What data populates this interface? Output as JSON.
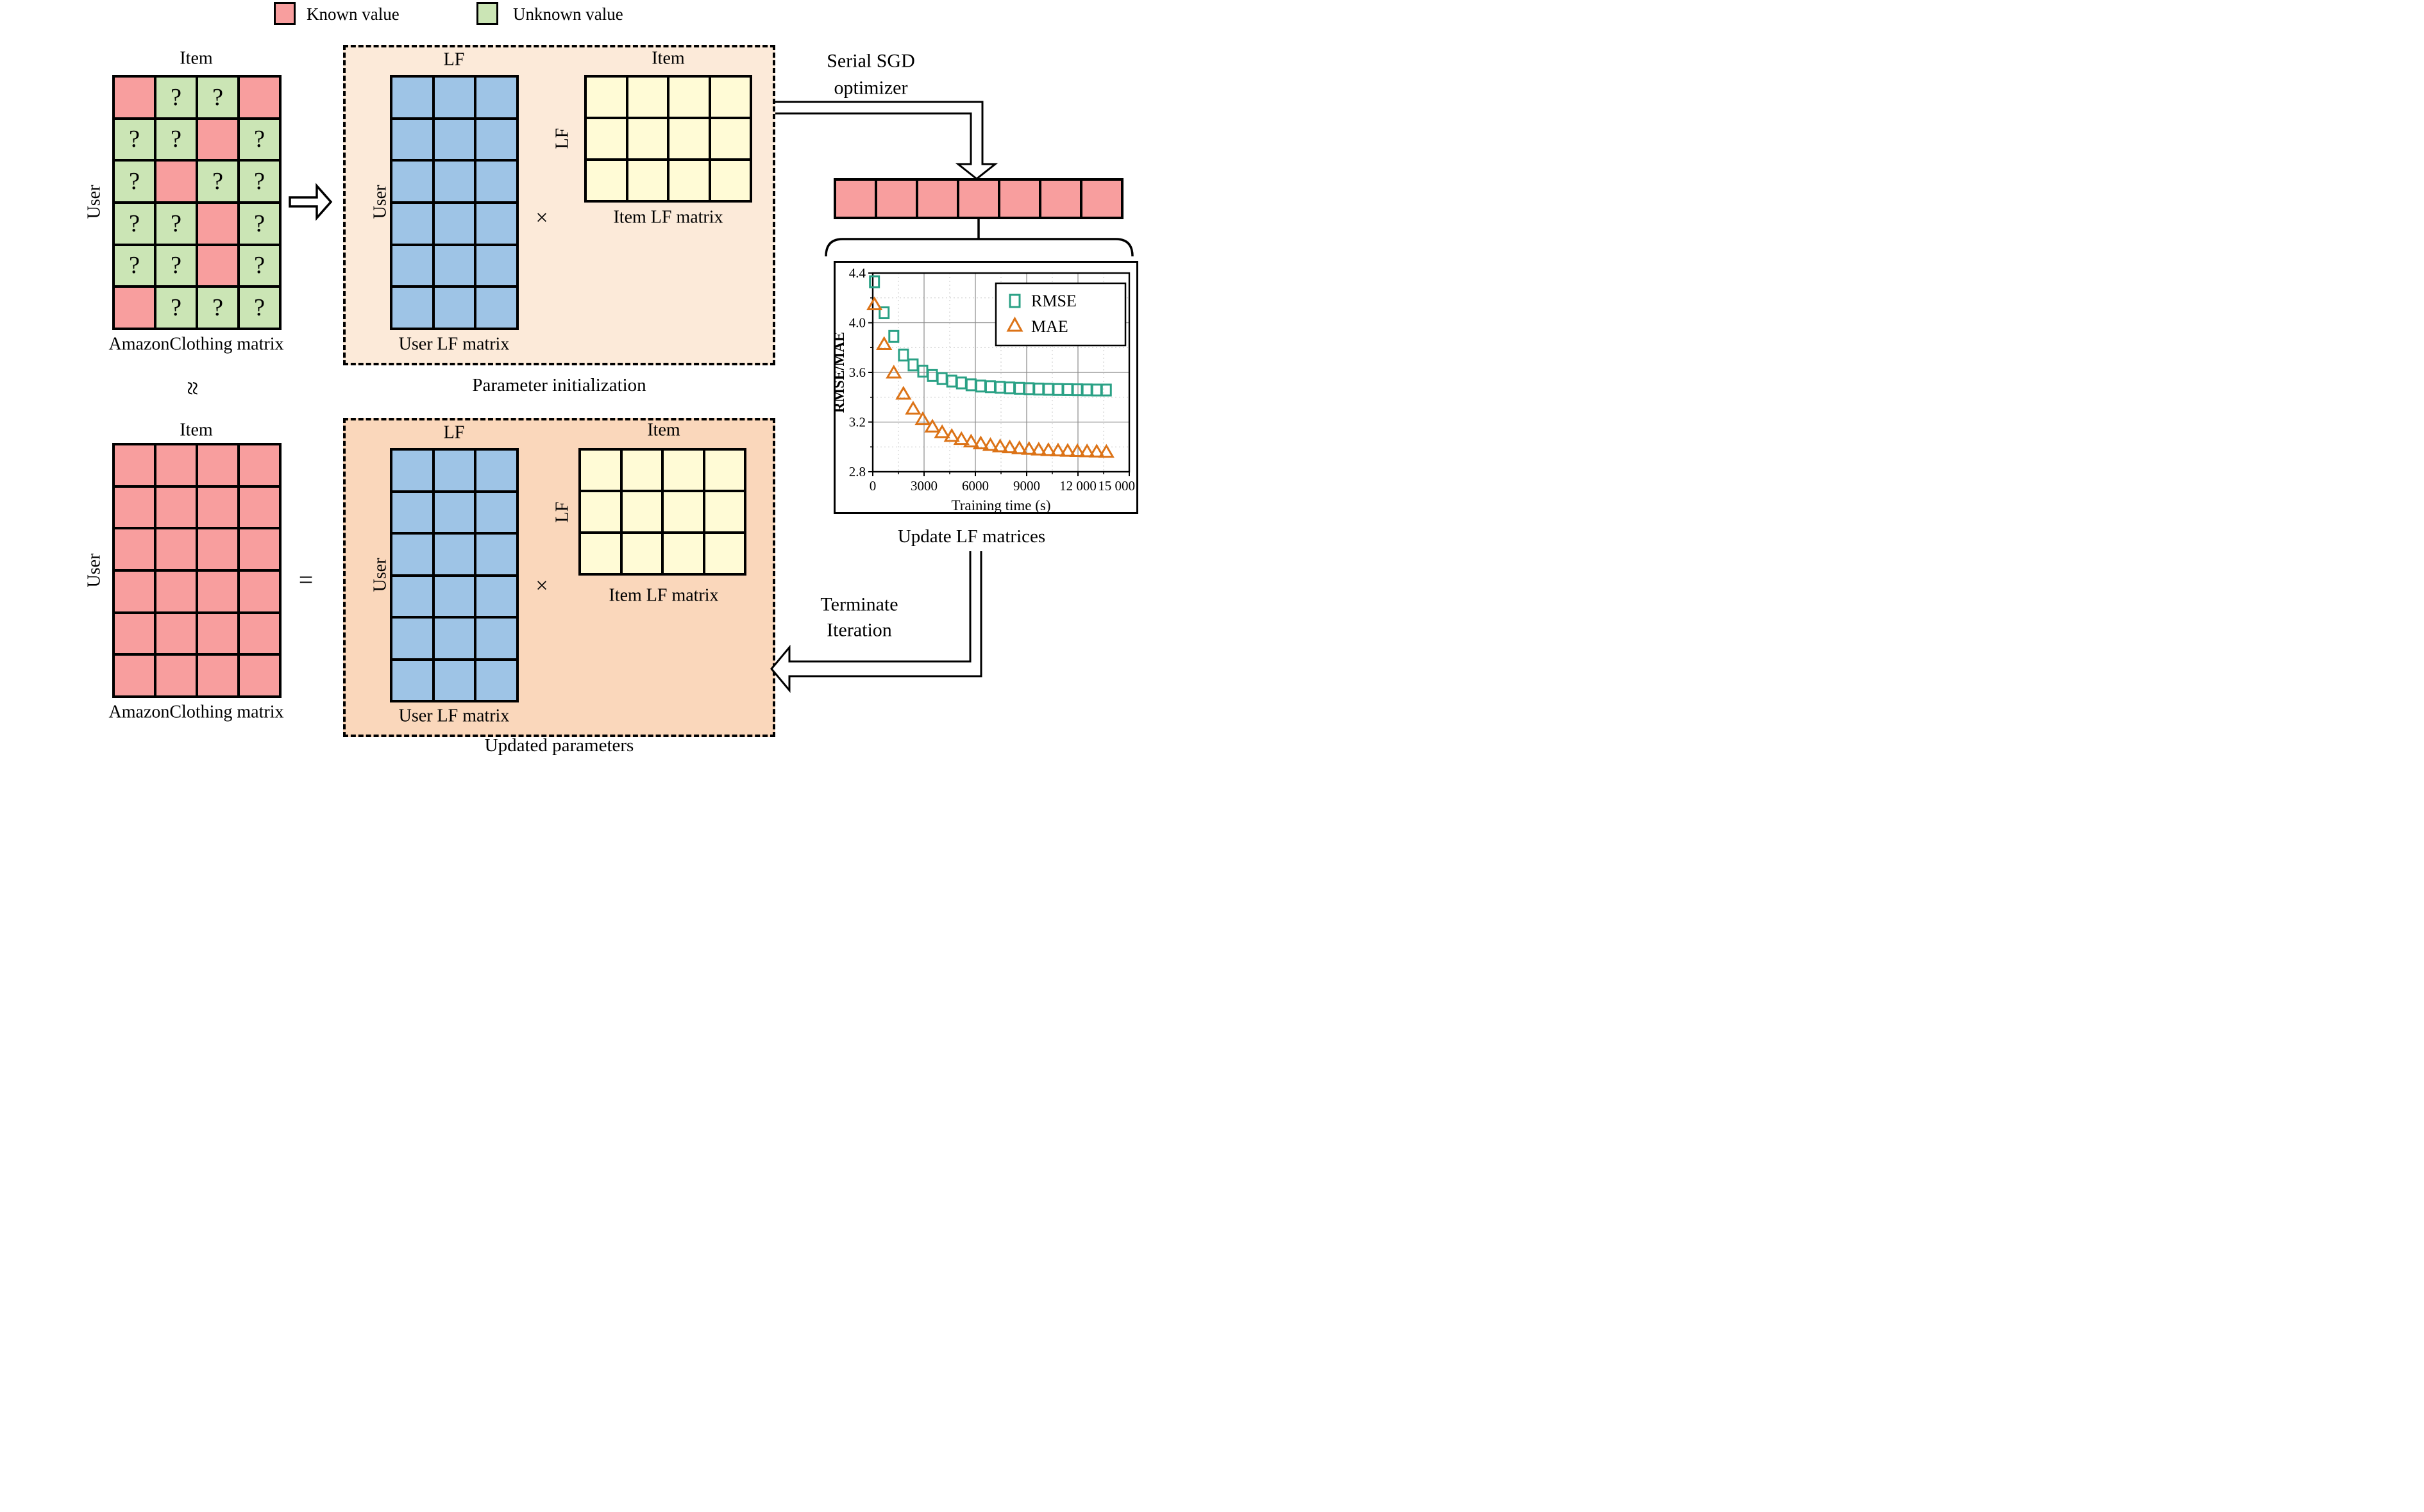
{
  "legend": {
    "known_label": "Known value",
    "unknown_label": "Unknown value"
  },
  "colors": {
    "known": "#f89e9e",
    "unknown": "#cbe5b5",
    "user_lf": "#9ec4e6",
    "item_lf": "#fffbd6",
    "init_box_bg": "#fcead9",
    "updated_box_bg": "#fad7bb",
    "rmse": "#2aa185",
    "mae": "#dc7317"
  },
  "approx_symbol": "≈",
  "equals_symbol": "=",
  "multiply_symbol": "×",
  "source_matrix": {
    "item_label": "Item",
    "user_label": "User",
    "caption": "AmazonClothing matrix",
    "rows": 6,
    "cols": 4,
    "known_fill": "known",
    "unknown_fill": "unknown",
    "mark": "?",
    "known_cells": [
      [
        0,
        0
      ],
      [
        0,
        3
      ],
      [
        1,
        2
      ],
      [
        2,
        1
      ],
      [
        3,
        2
      ],
      [
        4,
        2
      ],
      [
        5,
        0
      ]
    ]
  },
  "dense_matrix": {
    "item_label": "Item",
    "user_label": "User",
    "caption": "AmazonClothing matrix",
    "rows": 6,
    "cols": 4,
    "fill": "known"
  },
  "init_box": {
    "caption": "Parameter initialization",
    "user_matrix": {
      "top_label": "LF",
      "side_label": "User",
      "caption": "User LF matrix",
      "rows": 6,
      "cols": 3,
      "fill": "user_lf"
    },
    "item_matrix": {
      "top_label": "Item",
      "side_label": "LF",
      "caption": "Item LF matrix",
      "rows": 3,
      "cols": 4,
      "fill": "item_lf"
    }
  },
  "updated_box": {
    "caption": "Updated parameters",
    "user_matrix": {
      "top_label": "LF",
      "side_label": "User",
      "caption": "User LF matrix",
      "rows": 6,
      "cols": 3,
      "fill": "user_lf"
    },
    "item_matrix": {
      "top_label": "Item",
      "side_label": "LF",
      "caption": "Item LF matrix",
      "rows": 3,
      "cols": 4,
      "fill": "item_lf"
    }
  },
  "sgd": {
    "line1": "Serial SGD",
    "line2": "optimizer"
  },
  "vector": {
    "rows": 1,
    "cols": 7,
    "fill": "known"
  },
  "terminate": {
    "line1": "Terminate",
    "line2": "Iteration"
  },
  "chart_caption": "Update LF matrices",
  "chart_data": {
    "type": "scatter",
    "title": "",
    "xlabel": "Training time (s)",
    "ylabel": "RMSE/MAE",
    "xlim": [
      0,
      15000
    ],
    "ylim": [
      2.8,
      4.4
    ],
    "x_ticks": [
      0,
      3000,
      6000,
      9000,
      12000,
      15000
    ],
    "x_tick_labels": [
      "0",
      "3000",
      "6000",
      "9000",
      "12 000",
      "15 000"
    ],
    "x_minor_ticks": [
      1500,
      4500,
      7500,
      10500,
      13500
    ],
    "y_ticks": [
      2.8,
      3.2,
      3.6,
      4.0,
      4.4
    ],
    "y_tick_labels": [
      "2.8",
      "3.2",
      "3.6",
      "4.0",
      "4.4"
    ],
    "y_minor_ticks": [
      3.0,
      3.4,
      3.8,
      4.2
    ],
    "grid": "major-solid-minor-dotted",
    "legend_position": "top-right",
    "series": [
      {
        "name": "RMSE",
        "marker": "square",
        "color": "#2aa185",
        "x": [
          100,
          665,
          1230,
          1795,
          2360,
          2925,
          3490,
          4055,
          4620,
          5185,
          5750,
          6315,
          6880,
          7445,
          8010,
          8575,
          9140,
          9705,
          10270,
          10835,
          11400,
          11965,
          12530,
          13095,
          13660
        ],
        "y": [
          4.33,
          4.08,
          3.89,
          3.74,
          3.66,
          3.61,
          3.575,
          3.55,
          3.53,
          3.515,
          3.5,
          3.49,
          3.485,
          3.48,
          3.475,
          3.472,
          3.469,
          3.466,
          3.464,
          3.462,
          3.461,
          3.46,
          3.459,
          3.458,
          3.458
        ]
      },
      {
        "name": "MAE",
        "marker": "triangle",
        "color": "#dc7317",
        "x": [
          100,
          665,
          1230,
          1795,
          2360,
          2925,
          3490,
          4055,
          4620,
          5185,
          5750,
          6315,
          6880,
          7445,
          8010,
          8575,
          9140,
          9705,
          10270,
          10835,
          11400,
          11965,
          12530,
          13095,
          13660
        ],
        "y": [
          4.15,
          3.83,
          3.6,
          3.43,
          3.31,
          3.225,
          3.165,
          3.12,
          3.09,
          3.065,
          3.045,
          3.03,
          3.017,
          3.006,
          2.998,
          2.991,
          2.985,
          2.98,
          2.976,
          2.973,
          2.97,
          2.968,
          2.966,
          2.964,
          2.962
        ]
      }
    ]
  }
}
